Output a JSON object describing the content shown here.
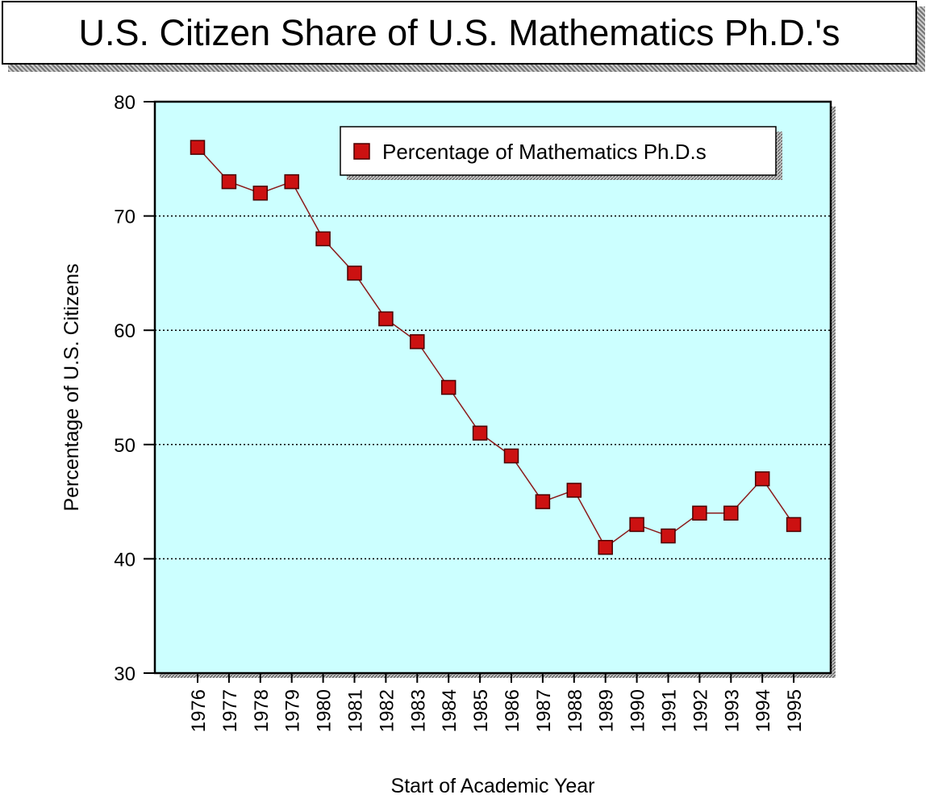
{
  "chart_data": {
    "type": "line",
    "title": "U.S. Citizen Share of U.S. Mathematics Ph.D.'s",
    "xlabel": "Start of Academic Year",
    "ylabel": "Percentage of U.S. Citizens",
    "categories": [
      "1976",
      "1977",
      "1978",
      "1979",
      "1980",
      "1981",
      "1982",
      "1983",
      "1984",
      "1985",
      "1986",
      "1987",
      "1988",
      "1989",
      "1990",
      "1991",
      "1992",
      "1993",
      "1994",
      "1995"
    ],
    "series": [
      {
        "name": "Percentage of Mathematics Ph.D.s",
        "values": [
          76,
          73,
          72,
          73,
          68,
          65,
          61,
          59,
          55,
          51,
          49,
          45,
          46,
          41,
          43,
          42,
          44,
          44,
          47,
          43
        ]
      }
    ],
    "ylim": [
      30,
      80
    ],
    "yticks": [
      "30",
      "40",
      "50",
      "60",
      "70",
      "80"
    ],
    "gridlines": [
      40,
      50,
      60,
      70
    ],
    "grid": "horizontal dotted",
    "legend_position": "top-right",
    "colors": {
      "plot_background": "#ccffff",
      "line": "#8b1a1a",
      "marker": "#cc1111"
    }
  }
}
